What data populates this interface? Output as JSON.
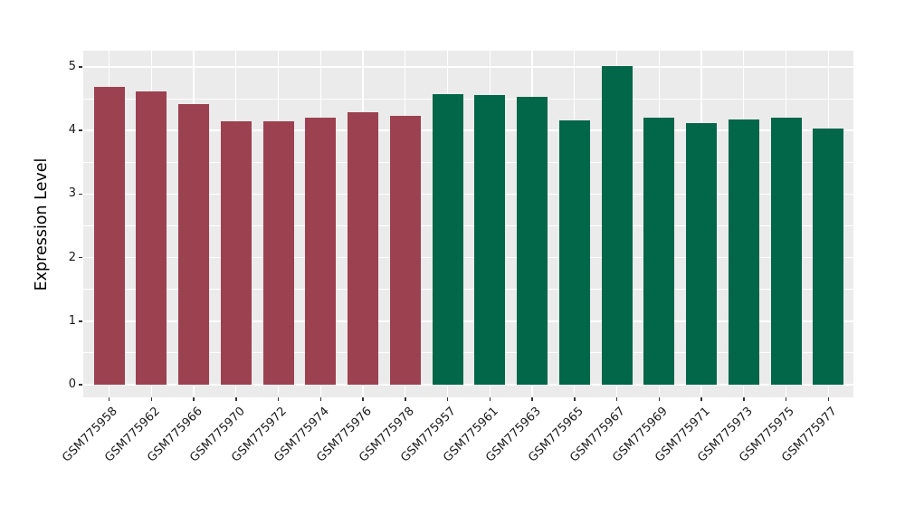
{
  "chart_data": {
    "type": "bar",
    "title": "",
    "xlabel": "",
    "ylabel": "Expression Level",
    "ylim": [
      0,
      5.25
    ],
    "yticks": [
      0,
      1,
      2,
      3,
      4,
      5
    ],
    "grid": "white major gridlines at integers and minor at half-integers on gray panel; vertical white gridlines at category centers",
    "legend": "none",
    "categories": [
      "GSM775958",
      "GSM775962",
      "GSM775966",
      "GSM775970",
      "GSM775972",
      "GSM775974",
      "GSM775976",
      "GSM775978",
      "GSM775957",
      "GSM775961",
      "GSM775963",
      "GSM775965",
      "GSM775967",
      "GSM775969",
      "GSM775971",
      "GSM775973",
      "GSM775975",
      "GSM775977"
    ],
    "values": [
      4.69,
      4.62,
      4.42,
      4.14,
      4.15,
      4.2,
      4.29,
      4.23,
      4.57,
      4.56,
      4.53,
      4.16,
      5.02,
      4.2,
      4.12,
      4.17,
      4.2,
      4.03
    ],
    "bar_colors": [
      "#9c4150",
      "#9c4150",
      "#9c4150",
      "#9c4150",
      "#9c4150",
      "#9c4150",
      "#9c4150",
      "#9c4150",
      "#026649",
      "#026649",
      "#026649",
      "#026649",
      "#026649",
      "#026649",
      "#026649",
      "#026649",
      "#026649",
      "#026649"
    ],
    "group_colors": {
      "first_group": "#9c4150",
      "second_group": "#026649"
    },
    "panel_background": "#ebebeb",
    "gridline_color": "#ffffff",
    "tick_text_color": "#1a1a1a"
  }
}
